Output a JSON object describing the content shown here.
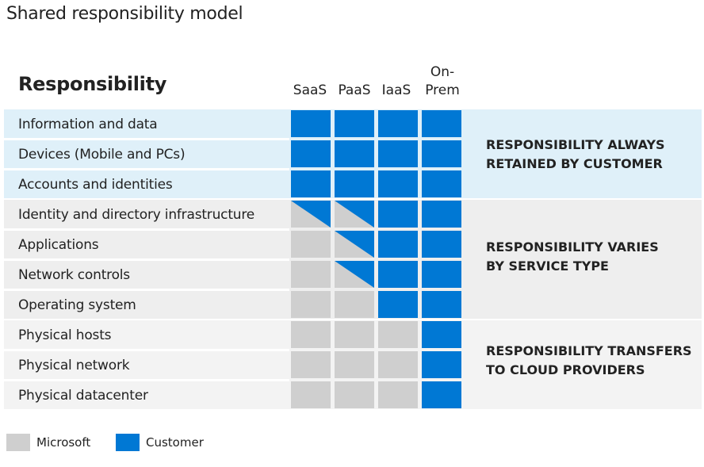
{
  "title": "Shared responsibility model",
  "responsibility_header": "Responsibility",
  "columns": [
    "SaaS",
    "PaaS",
    "IaaS",
    "On-\nPrem"
  ],
  "rows": [
    {
      "label": "Information and data",
      "cells": [
        "C",
        "C",
        "C",
        "C"
      ]
    },
    {
      "label": "Devices (Mobile and PCs)",
      "cells": [
        "C",
        "C",
        "C",
        "C"
      ]
    },
    {
      "label": "Accounts and identities",
      "cells": [
        "C",
        "C",
        "C",
        "C"
      ]
    },
    {
      "label": "Identity and directory infrastructure",
      "cells": [
        "S",
        "S",
        "C",
        "C"
      ]
    },
    {
      "label": "Applications",
      "cells": [
        "M",
        "S",
        "C",
        "C"
      ]
    },
    {
      "label": "Network controls",
      "cells": [
        "M",
        "S",
        "C",
        "C"
      ]
    },
    {
      "label": "Operating system",
      "cells": [
        "M",
        "M",
        "C",
        "C"
      ]
    },
    {
      "label": "Physical hosts",
      "cells": [
        "M",
        "M",
        "M",
        "C"
      ]
    },
    {
      "label": "Physical network",
      "cells": [
        "M",
        "M",
        "M",
        "C"
      ]
    },
    {
      "label": "Physical datacenter",
      "cells": [
        "M",
        "M",
        "M",
        "C"
      ]
    }
  ],
  "bands": [
    {
      "text": "RESPONSIBILITY ALWAYS\nRETAINED BY CUSTOMER"
    },
    {
      "text": "RESPONSIBILITY VARIES\nBY SERVICE TYPE"
    },
    {
      "text": "RESPONSIBILITY TRANSFERS\nTO CLOUD PROVIDERS"
    }
  ],
  "legend": {
    "microsoft_label": "Microsoft",
    "customer_label": "Customer"
  },
  "colors": {
    "customer": "#0078d4",
    "microsoft": "#cfcfcf",
    "band_customer": "#dff0f9",
    "band_varies": "#eeeeee",
    "band_transfer": "#f3f3f3"
  }
}
